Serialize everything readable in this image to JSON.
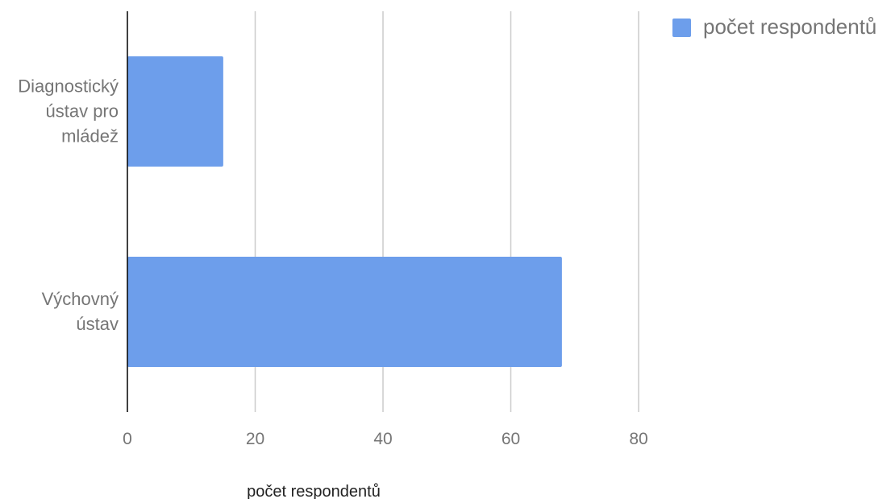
{
  "chart_data": {
    "type": "bar",
    "orientation": "horizontal",
    "categories": [
      {
        "lines": [
          "Diagnostický",
          "ústav pro",
          "mládež"
        ]
      },
      {
        "lines": [
          "Výchovný",
          "ústav"
        ]
      }
    ],
    "series": [
      {
        "name": "počet respondentů",
        "color": "#6d9eeb",
        "values": [
          15,
          68
        ]
      }
    ],
    "xlabel": "počet respondentů",
    "ylabel": "",
    "title": "",
    "xlim": [
      0,
      80
    ],
    "xticks": [
      "0",
      "20",
      "40",
      "60",
      "80"
    ],
    "grid": true,
    "legend_position": "top-right",
    "colors": {
      "grid": "#cccccc",
      "axis": "#000000",
      "tick_label": "#757575",
      "category_label": "#757575",
      "axis_label": "#222222",
      "legend_text": "#757575"
    }
  }
}
